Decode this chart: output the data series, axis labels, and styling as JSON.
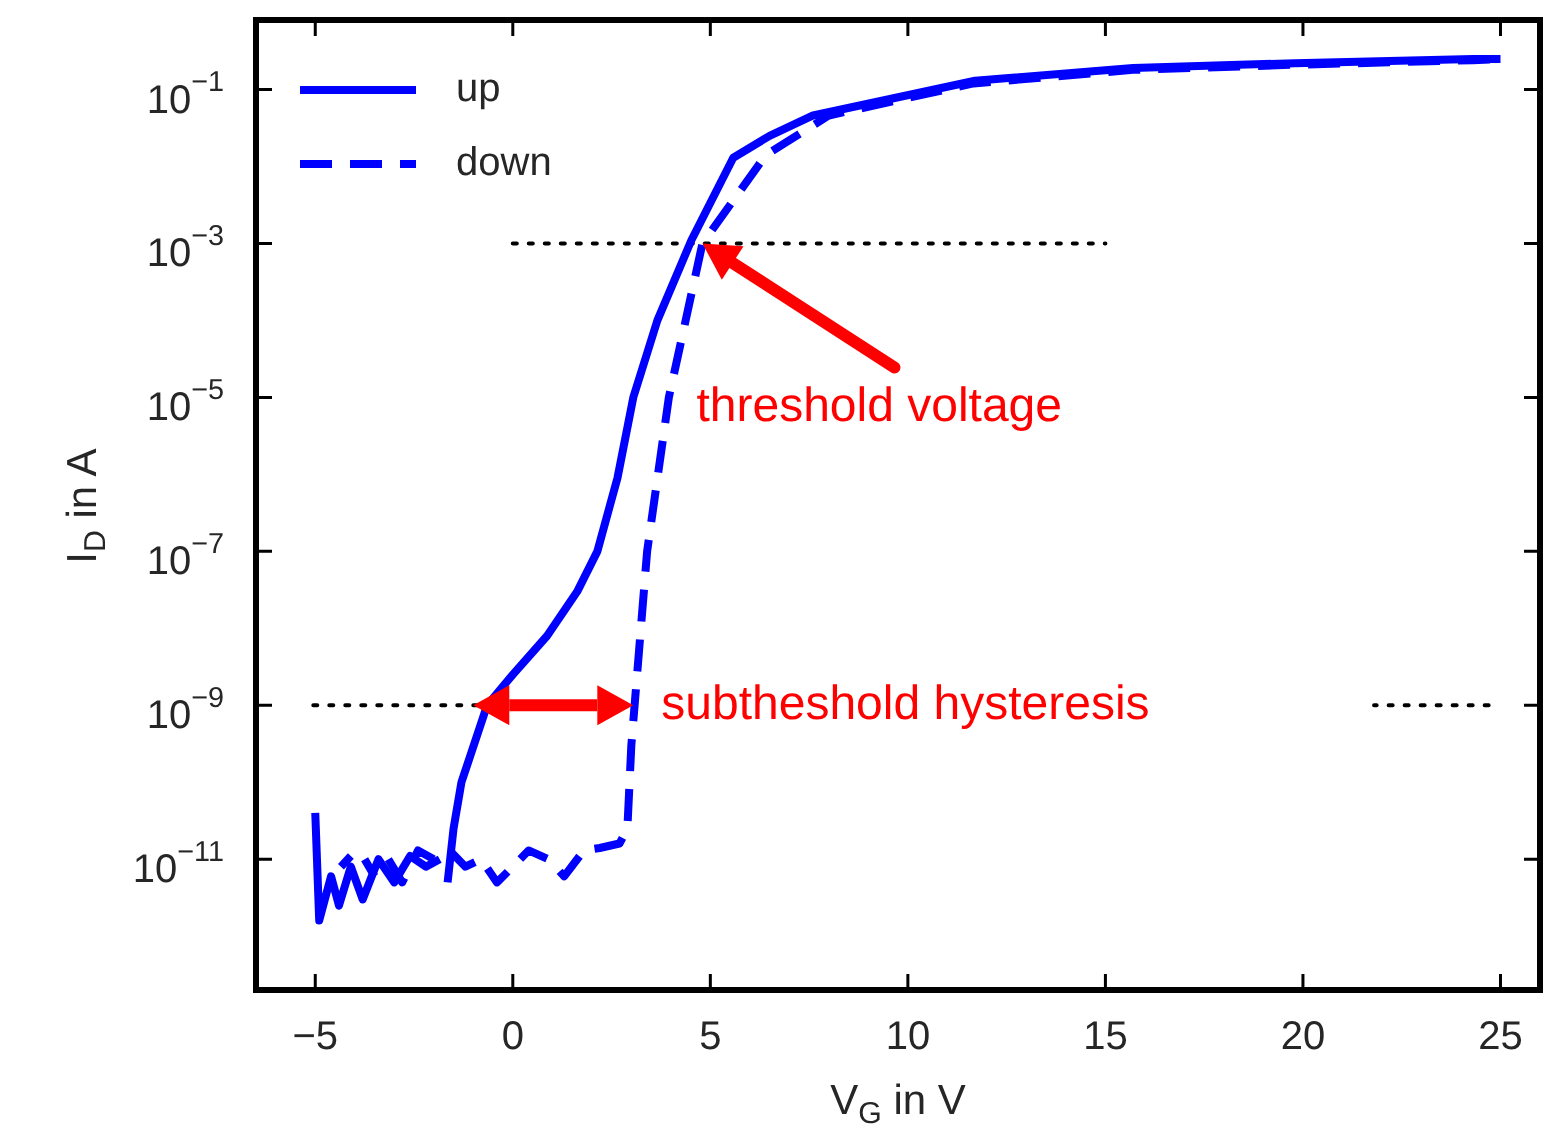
{
  "chart_data": {
    "type": "line",
    "xlabel": "V$_{G}$ in V",
    "ylabel": "I$_{D}$ in A",
    "log": "y",
    "grid": false,
    "legend": "top left",
    "marker": "none",
    "xlim": [
      -6.5,
      26
    ],
    "xticks": [
      {
        "value": -5,
        "label": "−5"
      },
      0,
      5,
      10,
      15,
      20,
      25
    ],
    "ylim": [
      2e-13,
      0.8
    ],
    "yticks": [
      {
        "value": 0.1,
        "label": "10$^{−1}$"
      },
      {
        "value": 0.001,
        "label": "10$^{−3}$"
      },
      {
        "value": 1e-05,
        "label": "10$^{−5}$"
      },
      {
        "value": 1e-07,
        "label": "10$^{−7}$"
      },
      {
        "value": 1e-09,
        "label": "10$^{−9}$"
      },
      {
        "value": 1e-11,
        "label": "10$^{−11}$"
      }
    ],
    "series": [
      {
        "name": "up",
        "color": "#0000ff",
        "line_style": "solid",
        "x": [
          -5,
          -4.9,
          -4.6,
          -4.4,
          -4.1,
          -3.8,
          -3.4,
          -3.0,
          -2.6,
          -2.2,
          -1.85,
          -1.72,
          -1.65,
          -1.5,
          -1.3,
          -0.65,
          0,
          0.87,
          1.63,
          2.14,
          2.65,
          3.05,
          3.66,
          4.52,
          5.58,
          6.5,
          7.6,
          11.7,
          15.7,
          19.8,
          24.3,
          25
        ],
        "values": [
          4e-11,
          1.6e-12,
          6e-12,
          2.5e-12,
          8e-12,
          3e-12,
          1e-11,
          5e-12,
          1.1e-11,
          8e-12,
          1e-11,
          null,
          5e-12,
          2.5e-11,
          1e-10,
          1e-09,
          2.5e-09,
          8e-09,
          3e-08,
          1e-07,
          9e-07,
          1e-05,
          0.0001,
          0.0011,
          0.013,
          0.025,
          0.046,
          0.13,
          0.19,
          0.22,
          0.25,
          0.25
        ]
      },
      {
        "name": "down",
        "color": "#0000ff",
        "line_style": "dashed",
        "x": [
          -4.35,
          -4.1,
          -3.9,
          -3.75,
          -3.5,
          -3.3,
          -3.15,
          -2.8,
          -2.4,
          -2.0,
          -1.6,
          -1.2,
          -0.8,
          -0.4,
          0,
          0.4,
          0.9,
          1.3,
          1.8,
          2.2,
          2.7,
          2.9,
          3.0,
          3.4,
          3.95,
          4.8,
          6.4,
          8.0,
          11.66,
          15.7,
          19.8,
          24.3,
          25
        ],
        "values": [
          8e-12,
          1.1e-11,
          null,
          1e-11,
          6e-12,
          null,
          1e-11,
          5e-12,
          1.3e-11,
          1e-11,
          1.3e-11,
          8e-12,
          1e-11,
          5e-12,
          8e-12,
          1.3e-11,
          1e-11,
          6e-12,
          1.3e-11,
          1.4e-11,
          1.6e-11,
          2.5e-11,
          3e-10,
          1e-07,
          1e-05,
          0.001,
          0.014,
          0.046,
          0.12,
          0.18,
          0.21,
          0.24,
          0.25
        ]
      },
      {
        "type": "line",
        "color": "#000000",
        "line_style": "dotted",
        "x": [
          0,
          15
        ],
        "values": [
          0.001,
          0.001
        ]
      },
      {
        "type": "line",
        "color": "#000000",
        "line_style": "dotted",
        "x": [
          -5.05,
          -0.75
        ],
        "values": [
          1e-09,
          1e-09
        ]
      },
      {
        "type": "line",
        "color": "#000000",
        "line_style": "dotted",
        "x": [
          24.7,
          21.8
        ],
        "values": [
          1e-09,
          1e-09
        ]
      }
    ],
    "annotations": [
      {
        "text": "threshold voltage",
        "x": 4.8,
        "y": 0.001
      },
      {
        "text": "subtheshold hysteresis",
        "x": 3.05,
        "y": 1e-09
      }
    ]
  }
}
